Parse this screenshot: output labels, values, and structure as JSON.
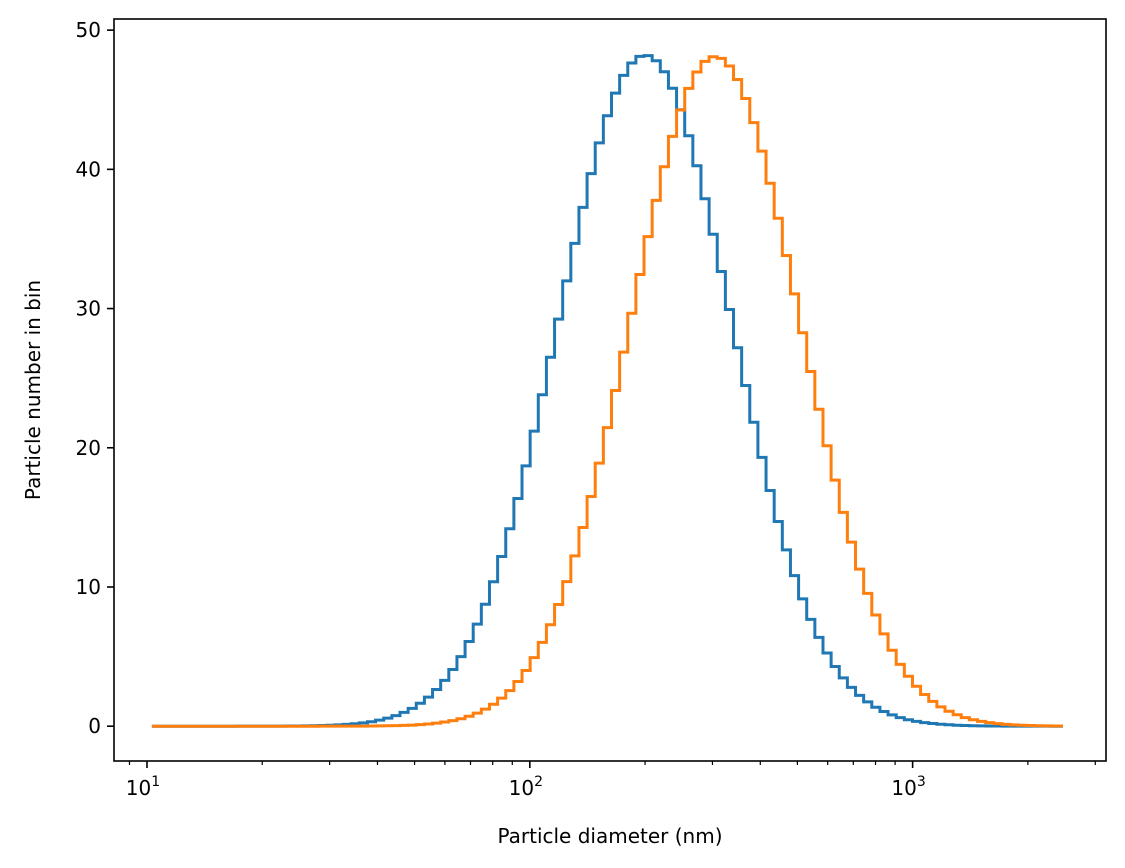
{
  "chart_data": {
    "type": "line",
    "title": "",
    "xlabel": "Particle diameter (nm)",
    "ylabel": "Particle number in bin",
    "xscale": "log",
    "xlim": [
      8.2,
      3200
    ],
    "ylim": [
      -2.5,
      50.8
    ],
    "grid": false,
    "drawstyle": "steps-mid",
    "x_ticks": [
      {
        "value": 10,
        "base": "10",
        "exp": "1"
      },
      {
        "value": 100,
        "base": "10",
        "exp": "2"
      },
      {
        "value": 1000,
        "base": "10",
        "exp": "3"
      }
    ],
    "y_ticks": [
      0,
      10,
      20,
      30,
      40,
      50
    ],
    "bins": {
      "start": 10.3,
      "end": 2470,
      "count": 113
    },
    "series": [
      {
        "color": "#1f77b4",
        "distribution": "lognormal",
        "center_nm": 200,
        "peak": 48.2,
        "ln_sigma": 0.52
      },
      {
        "color": "#ff7f0e",
        "distribution": "lognormal",
        "center_nm": 305,
        "peak": 48.1,
        "ln_sigma": 0.51
      }
    ]
  }
}
